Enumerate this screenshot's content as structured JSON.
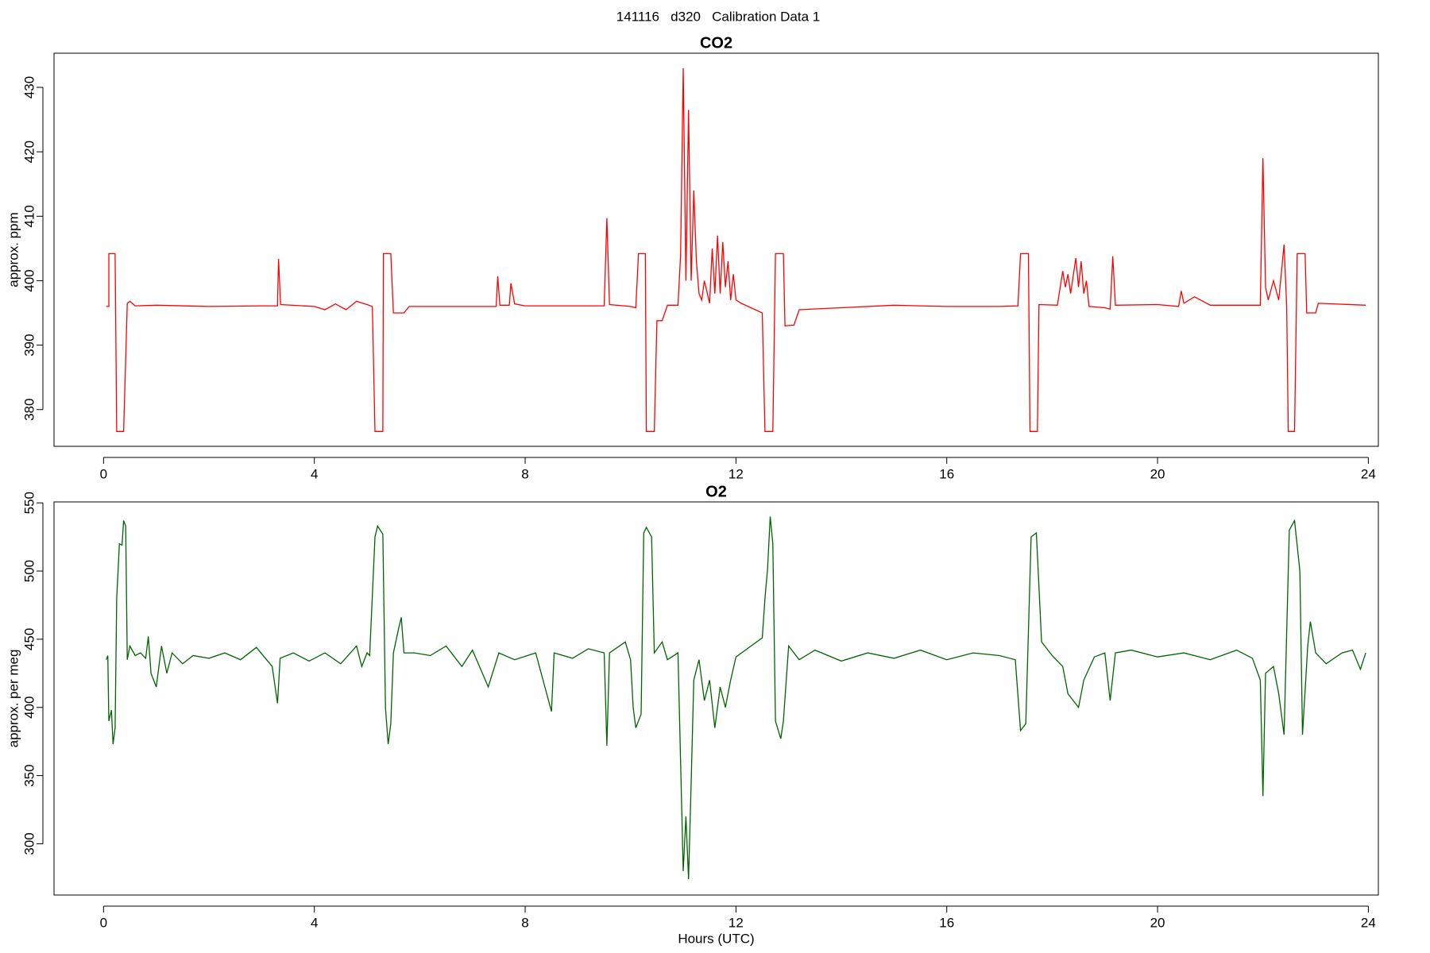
{
  "title": "141116   d320   Calibration Data 1",
  "chart_data": [
    {
      "type": "line",
      "title": "CO2",
      "ylabel": "approx. ppm",
      "color": "#ff0000",
      "xlim": [
        -0.94,
        24.19
      ],
      "xticks": [
        0,
        4,
        8,
        12,
        16,
        20,
        24
      ],
      "ylim": [
        374.3,
        435.3
      ],
      "yticks": [
        380,
        390,
        400,
        410,
        420,
        430
      ],
      "x": [
        0.05,
        0.1,
        0.1,
        0.22,
        0.25,
        0.38,
        0.45,
        0.5,
        0.6,
        1,
        2,
        3,
        3.3,
        3.32,
        3.36,
        4,
        4.2,
        4.4,
        4.6,
        4.8,
        5.0,
        5.1,
        5.15,
        5.3,
        5.31,
        5.45,
        5.5,
        5.7,
        5.8,
        7.45,
        7.48,
        7.52,
        7.7,
        7.73,
        7.8,
        8,
        9.5,
        9.55,
        9.6,
        10,
        10.1,
        10.15,
        10.28,
        10.3,
        10.45,
        10.5,
        10.6,
        10.7,
        10.9,
        10.95,
        11.0,
        11.05,
        11.1,
        11.15,
        11.2,
        11.25,
        11.3,
        11.35,
        11.4,
        11.5,
        11.55,
        11.6,
        11.65,
        11.7,
        11.75,
        11.8,
        11.85,
        11.9,
        11.95,
        12.0,
        12.1,
        12.5,
        12.55,
        12.7,
        12.75,
        12.9,
        12.93,
        13.1,
        13.2,
        14,
        15,
        16,
        17,
        17.35,
        17.4,
        17.55,
        17.58,
        17.72,
        17.75,
        18.1,
        18.2,
        18.25,
        18.3,
        18.35,
        18.45,
        18.5,
        18.55,
        18.6,
        18.65,
        18.7,
        19,
        19.1,
        19.15,
        19.2,
        20,
        20.4,
        20.45,
        20.5,
        20.7,
        21,
        21.95,
        22.0,
        22.05,
        22.1,
        22.2,
        22.3,
        22.4,
        22.45,
        22.48,
        22.6,
        22.65,
        22.8,
        22.83,
        23,
        23.05,
        23.95
      ],
      "values": [
        396,
        396,
        404.2,
        404.2,
        376.6,
        376.6,
        396.5,
        396.8,
        396.1,
        396.2,
        396,
        396.1,
        396.1,
        403.4,
        396.3,
        396,
        395.5,
        396.4,
        395.5,
        396.8,
        396.3,
        396,
        376.6,
        376.6,
        404.2,
        404.2,
        395,
        395,
        396,
        396,
        400.7,
        396.2,
        396.2,
        399.6,
        396.4,
        396.1,
        396.1,
        409.7,
        396.3,
        396,
        395.8,
        404.2,
        404.2,
        376.6,
        376.6,
        393.8,
        393.8,
        396.2,
        396.2,
        404,
        433,
        400,
        426.5,
        400,
        414,
        403,
        398,
        397,
        400,
        396.5,
        405,
        398,
        407,
        398,
        406,
        399,
        403,
        397,
        401,
        397,
        396.5,
        395,
        376.6,
        376.6,
        404.2,
        404.2,
        393,
        393.1,
        395.5,
        395.8,
        396.2,
        396,
        396,
        396.1,
        404.2,
        404.2,
        376.6,
        376.6,
        396.3,
        396.2,
        401.5,
        399,
        401,
        398,
        403.5,
        399,
        403,
        398,
        400,
        396,
        395.8,
        395.6,
        403.8,
        396.2,
        396.3,
        396,
        398.4,
        396.5,
        397.5,
        396.2,
        396.2,
        419,
        399,
        397,
        400,
        397,
        405.6,
        396,
        376.6,
        376.6,
        404.2,
        404.2,
        395,
        395,
        396.5,
        396.2
      ]
    },
    {
      "type": "line",
      "title": "O2",
      "ylabel": "approx. per meg",
      "xlabel": "Hours (UTC)",
      "color": "#006400",
      "xlim": [
        -0.94,
        24.19
      ],
      "xticks": [
        0,
        4,
        8,
        12,
        16,
        20,
        24
      ],
      "ylim": [
        262.4,
        550.7
      ],
      "yticks": [
        300,
        350,
        400,
        450,
        500,
        550
      ],
      "x": [
        0.05,
        0.08,
        0.1,
        0.15,
        0.18,
        0.22,
        0.25,
        0.3,
        0.35,
        0.38,
        0.42,
        0.45,
        0.5,
        0.6,
        0.7,
        0.8,
        0.85,
        0.9,
        1.0,
        1.1,
        1.2,
        1.3,
        1.5,
        1.7,
        2,
        2.3,
        2.6,
        2.9,
        3.2,
        3.3,
        3.35,
        3.6,
        3.9,
        4.2,
        4.5,
        4.8,
        4.9,
        5.0,
        5.05,
        5.15,
        5.2,
        5.3,
        5.35,
        5.4,
        5.45,
        5.5,
        5.6,
        5.65,
        5.7,
        5.9,
        6.2,
        6.5,
        6.8,
        7.0,
        7.3,
        7.5,
        7.8,
        8.2,
        8.5,
        8.55,
        8.9,
        9.2,
        9.5,
        9.55,
        9.6,
        9.9,
        10.0,
        10.05,
        10.1,
        10.2,
        10.25,
        10.3,
        10.4,
        10.45,
        10.6,
        10.7,
        10.9,
        11.0,
        11.05,
        11.1,
        11.15,
        11.2,
        11.3,
        11.4,
        11.5,
        11.6,
        11.7,
        11.8,
        11.9,
        12.0,
        12.5,
        12.55,
        12.6,
        12.65,
        12.7,
        12.75,
        12.85,
        12.9,
        13.0,
        13.2,
        13.5,
        14,
        14.5,
        15,
        15.5,
        16,
        16.5,
        17,
        17.3,
        17.4,
        17.5,
        17.6,
        17.7,
        17.8,
        18,
        18.2,
        18.3,
        18.5,
        18.6,
        18.8,
        19,
        19.1,
        19.2,
        19.5,
        20,
        20.5,
        21,
        21.5,
        21.8,
        21.95,
        22.0,
        22.05,
        22.2,
        22.3,
        22.4,
        22.5,
        22.6,
        22.7,
        22.75,
        22.85,
        22.9,
        23.0,
        23.2,
        23.5,
        23.7,
        23.85,
        23.95
      ],
      "values": [
        435,
        438,
        390,
        398,
        373,
        385,
        480,
        520,
        519,
        537,
        533,
        435,
        445,
        438,
        440,
        436,
        452,
        425,
        415,
        445,
        425,
        440,
        432,
        438,
        436,
        440,
        435,
        444,
        430,
        403,
        436,
        440,
        434,
        440,
        432,
        445,
        430,
        440,
        438,
        525,
        533,
        527,
        400,
        373,
        388,
        440,
        458,
        466,
        440,
        440,
        438,
        445,
        430,
        442,
        415,
        440,
        435,
        440,
        397,
        440,
        436,
        443,
        440,
        372,
        440,
        448,
        435,
        400,
        385,
        395,
        528,
        532,
        525,
        440,
        448,
        435,
        440,
        280,
        320,
        274,
        345,
        420,
        435,
        405,
        420,
        385,
        415,
        400,
        420,
        437,
        451,
        480,
        502,
        540,
        520,
        390,
        377,
        390,
        445,
        435,
        442,
        434,
        440,
        436,
        442,
        435,
        440,
        438,
        435,
        383,
        388,
        525,
        528,
        448,
        438,
        430,
        410,
        400,
        420,
        437,
        440,
        405,
        440,
        442,
        437,
        440,
        435,
        442,
        436,
        420,
        335,
        425,
        430,
        410,
        380,
        530,
        537,
        500,
        380,
        445,
        463,
        440,
        432,
        440,
        442,
        428,
        440
      ]
    }
  ]
}
